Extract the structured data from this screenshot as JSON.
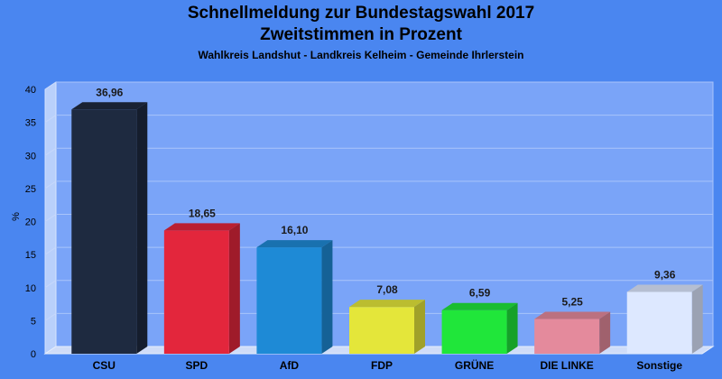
{
  "chart_data": {
    "type": "bar",
    "title": "Schnellmeldung zur Bundestagswahl 2017",
    "subtitle": "Zweitstimmen in Prozent",
    "caption": "Wahlkreis Landshut - Landkreis Kelheim - Gemeinde Ihrlerstein",
    "xlabel": "",
    "ylabel": "%",
    "ylim": [
      0,
      40
    ],
    "yticks": [
      "0",
      "5",
      "10",
      "15",
      "20",
      "25",
      "30",
      "35",
      "40"
    ],
    "grid": true,
    "categories": [
      "CSU",
      "SPD",
      "AfD",
      "FDP",
      "GRÜNE",
      "DIE LINKE",
      "Sonstige"
    ],
    "values": [
      36.96,
      18.65,
      16.1,
      7.08,
      6.59,
      5.25,
      9.36
    ],
    "value_labels": [
      "36,96",
      "18,65",
      "16,10",
      "7,08",
      "6,59",
      "5,25",
      "9,36"
    ],
    "colors": [
      "#1e2a40",
      "#e3263c",
      "#1e8ad6",
      "#e4e63a",
      "#20e63a",
      "#e48a9c",
      "#dde8ff"
    ]
  }
}
